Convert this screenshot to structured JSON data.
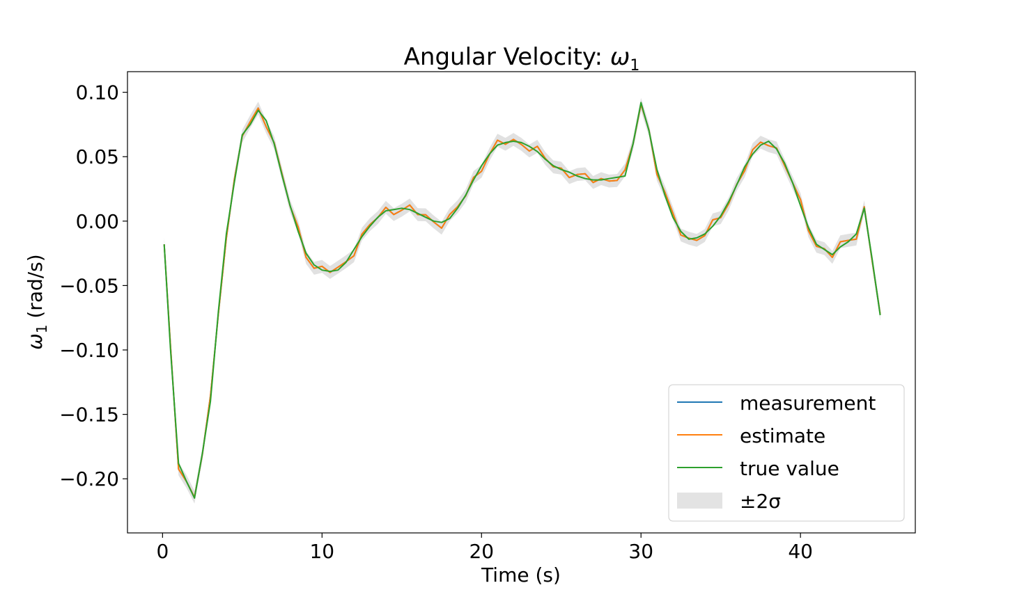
{
  "chart_data": {
    "type": "line",
    "title": "Angular Velocity: ω1",
    "title_main": "Angular Velocity: ",
    "title_symbol": "ω",
    "title_subscript": "1",
    "xlabel": "Time (s)",
    "ylabel_symbol": "ω",
    "ylabel_subscript": "1",
    "ylabel_unit": " (rad/s)",
    "xlim": [
      -2.2,
      47.2
    ],
    "ylim": [
      -0.242,
      0.116
    ],
    "xticks": [
      0,
      10,
      20,
      30,
      40
    ],
    "xtick_labels": [
      "0",
      "10",
      "20",
      "30",
      "40"
    ],
    "yticks": [
      -0.2,
      -0.15,
      -0.1,
      -0.05,
      0.0,
      0.05,
      0.1
    ],
    "ytick_labels": [
      "−0.20",
      "−0.15",
      "−0.10",
      "−0.05",
      "0.00",
      "0.05",
      "0.10"
    ],
    "grid": false,
    "legend_position": "lower-right",
    "legend": [
      {
        "label": "measurement",
        "kind": "line",
        "color": "#1f77b4"
      },
      {
        "label": "estimate",
        "kind": "line",
        "color": "#ff7f0e"
      },
      {
        "label": "true value",
        "kind": "line",
        "color": "#2ca02c"
      },
      {
        "label": "±2σ",
        "kind": "patch",
        "color": "#c8c8c8"
      }
    ],
    "band_halfwidth": 0.005,
    "x": [
      0.1,
      0.5,
      1.0,
      1.5,
      2.0,
      2.5,
      3.0,
      3.5,
      4.0,
      4.5,
      5.0,
      5.5,
      6.0,
      6.5,
      7.0,
      7.5,
      8.0,
      8.5,
      9.0,
      9.5,
      10.0,
      10.5,
      11.0,
      11.5,
      12.0,
      12.5,
      13.0,
      13.5,
      14.0,
      14.5,
      15.0,
      15.5,
      16.0,
      16.5,
      17.0,
      17.5,
      18.0,
      18.5,
      19.0,
      19.5,
      20.0,
      20.5,
      21.0,
      21.5,
      22.0,
      22.5,
      23.0,
      23.5,
      24.0,
      24.5,
      25.0,
      25.5,
      26.0,
      26.5,
      27.0,
      27.5,
      28.0,
      28.5,
      29.0,
      29.5,
      30.0,
      30.5,
      31.0,
      31.5,
      32.0,
      32.5,
      33.0,
      33.5,
      34.0,
      34.5,
      35.0,
      35.5,
      36.0,
      36.5,
      37.0,
      37.5,
      38.0,
      38.5,
      39.0,
      39.5,
      40.0,
      40.5,
      41.0,
      41.5,
      42.0,
      42.5,
      43.0,
      43.5,
      44.0,
      44.5,
      45.0
    ],
    "series": [
      {
        "name": "true value",
        "color": "#2ca02c",
        "values": [
          -0.018,
          -0.1,
          -0.188,
          -0.202,
          -0.215,
          -0.18,
          -0.14,
          -0.07,
          -0.01,
          0.03,
          0.067,
          0.075,
          0.086,
          0.078,
          0.06,
          0.035,
          0.012,
          -0.008,
          -0.025,
          -0.034,
          -0.038,
          -0.039,
          -0.038,
          -0.032,
          -0.022,
          -0.012,
          -0.004,
          0.003,
          0.008,
          0.009,
          0.01,
          0.009,
          0.006,
          0.003,
          0.0,
          -0.001,
          0.002,
          0.01,
          0.02,
          0.032,
          0.043,
          0.052,
          0.059,
          0.061,
          0.062,
          0.061,
          0.058,
          0.054,
          0.048,
          0.043,
          0.04,
          0.038,
          0.035,
          0.033,
          0.032,
          0.032,
          0.033,
          0.034,
          0.035,
          0.06,
          0.092,
          0.07,
          0.04,
          0.02,
          0.003,
          -0.008,
          -0.014,
          -0.013,
          -0.01,
          -0.004,
          0.004,
          0.015,
          0.028,
          0.042,
          0.052,
          0.059,
          0.062,
          0.056,
          0.045,
          0.03,
          0.012,
          -0.005,
          -0.018,
          -0.022,
          -0.026,
          -0.02,
          -0.016,
          -0.01,
          0.01,
          -0.03,
          -0.073
        ]
      }
    ]
  }
}
